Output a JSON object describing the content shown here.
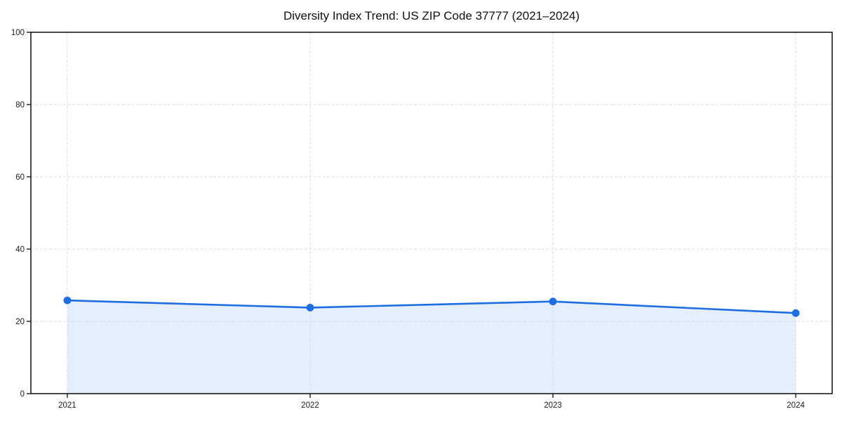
{
  "chart_data": {
    "type": "line",
    "title": "Diversity Index Trend: US ZIP Code 37777 (2021–2024)",
    "xlabel": "",
    "ylabel": "",
    "categories": [
      "2021",
      "2022",
      "2023",
      "2024"
    ],
    "series": [
      {
        "name": "Diversity Index",
        "values": [
          25.8,
          23.8,
          25.5,
          22.3
        ]
      }
    ],
    "ylim": [
      0,
      100
    ],
    "yticks": [
      0,
      20,
      40,
      60,
      80,
      100
    ],
    "grid": "dashed",
    "legend_position": "none",
    "area_fill": true,
    "colors": {
      "line": "#1d6ee3",
      "marker": "#1d6ee3",
      "area_fill": "#e4eefc",
      "grid": "#dcdcdc",
      "spine": "#1a1a1a",
      "tick_text": "#1a1a1a",
      "background": "#ffffff"
    }
  }
}
